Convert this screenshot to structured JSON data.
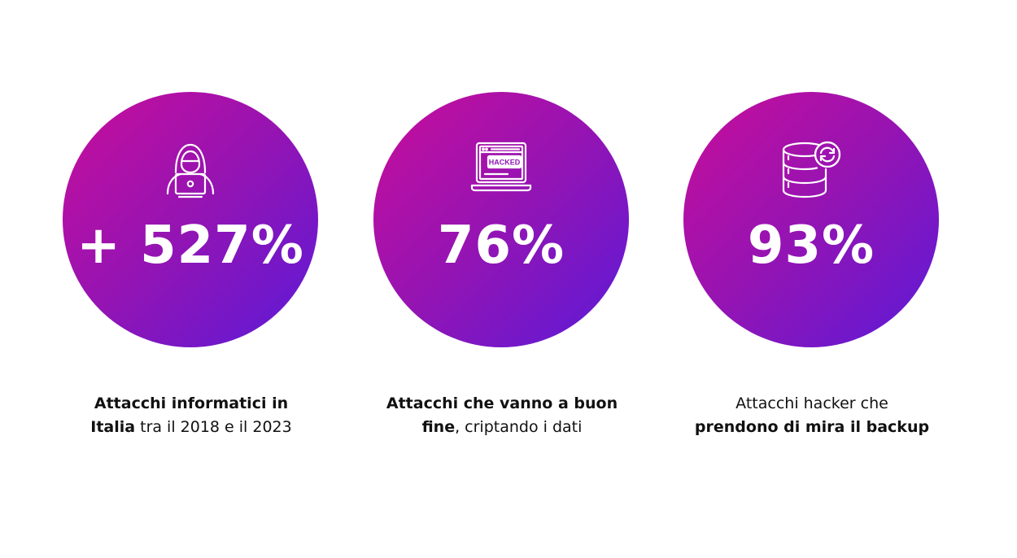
{
  "colors": {
    "gradient_start": "#c90d9a",
    "gradient_end": "#5b1ad9",
    "text": "#111111",
    "on_circle": "#ffffff"
  },
  "stats": [
    {
      "icon": "hacker-icon",
      "value": "+ 527%",
      "caption_line1_bold": "Attacchi informatici in",
      "caption_line2_bold": "Italia",
      "caption_line2_rest": " tra il 2018 e il 2023"
    },
    {
      "icon": "hacked-laptop-icon",
      "icon_label": "HACKED",
      "value": "76%",
      "caption_line1_bold": "Attacchi che vanno a buon",
      "caption_line2_bold": "fine",
      "caption_line2_rest": ", criptando i dati"
    },
    {
      "icon": "database-sync-icon",
      "value": "93%",
      "caption_line1_rest": "Attacchi hacker che",
      "caption_line2_bold": "prendono di mira il backup"
    }
  ]
}
